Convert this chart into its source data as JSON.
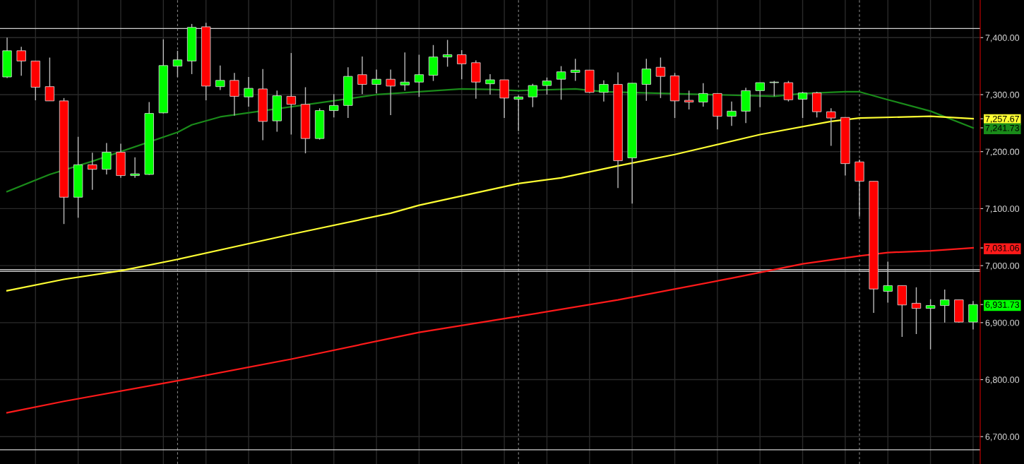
{
  "chart_data": {
    "type": "candlestick",
    "categories": [
      null,
      null,
      null,
      null,
      null,
      null,
      null,
      null,
      null,
      null,
      null,
      null,
      null,
      null,
      null,
      null,
      null,
      null,
      null,
      null,
      null,
      null,
      null,
      null,
      null,
      null,
      null,
      null,
      null,
      null,
      null,
      null,
      null,
      null,
      null,
      null,
      null,
      null,
      null,
      null,
      null,
      null,
      null,
      null,
      null,
      null,
      null,
      null,
      null,
      null,
      null,
      null,
      null,
      null,
      null,
      null,
      null,
      null,
      null,
      null,
      null,
      null,
      null,
      null,
      null,
      null,
      null,
      null,
      null
    ],
    "ohlc": [
      [
        7331,
        7400,
        7329,
        7377
      ],
      [
        7377,
        7384,
        7333,
        7359
      ],
      [
        7359,
        7359,
        7290,
        7313
      ],
      [
        7314,
        7365,
        7289,
        7289
      ],
      [
        7289,
        7294,
        7073,
        7120
      ],
      [
        7120,
        7226,
        7084,
        7177
      ],
      [
        7177,
        7198,
        7133,
        7169
      ],
      [
        7169,
        7215,
        7160,
        7199
      ],
      [
        7199,
        7214,
        7154,
        7158
      ],
      [
        7158,
        7190,
        7154,
        7161
      ],
      [
        7160,
        7287,
        7159,
        7267
      ],
      [
        7268,
        7397,
        7267,
        7351
      ],
      [
        7350,
        7377,
        7331,
        7361
      ],
      [
        7359,
        7424,
        7336,
        7418
      ],
      [
        7419,
        7426,
        7290,
        7315
      ],
      [
        7314,
        7351,
        7308,
        7325
      ],
      [
        7325,
        7338,
        7263,
        7297
      ],
      [
        7296,
        7331,
        7279,
        7311
      ],
      [
        7310,
        7345,
        7220,
        7253
      ],
      [
        7254,
        7307,
        7235,
        7298
      ],
      [
        7297,
        7373,
        7230,
        7283
      ],
      [
        7283,
        7313,
        7197,
        7223
      ],
      [
        7223,
        7276,
        7221,
        7272
      ],
      [
        7272,
        7301,
        7260,
        7281
      ],
      [
        7281,
        7348,
        7259,
        7332
      ],
      [
        7335,
        7367,
        7301,
        7318
      ],
      [
        7318,
        7344,
        7302,
        7327
      ],
      [
        7327,
        7344,
        7264,
        7315
      ],
      [
        7317,
        7374,
        7307,
        7322
      ],
      [
        7322,
        7370,
        7296,
        7335
      ],
      [
        7334,
        7387,
        7324,
        7366
      ],
      [
        7366,
        7396,
        7349,
        7370
      ],
      [
        7370,
        7378,
        7327,
        7354
      ],
      [
        7356,
        7360,
        7293,
        7322
      ],
      [
        7319,
        7336,
        7300,
        7326
      ],
      [
        7326,
        7326,
        7259,
        7294
      ],
      [
        7292,
        7298,
        7236,
        7296
      ],
      [
        7296,
        7319,
        7278,
        7316
      ],
      [
        7316,
        7330,
        7300,
        7324
      ],
      [
        7327,
        7350,
        7291,
        7340
      ],
      [
        7339,
        7363,
        7324,
        7343
      ],
      [
        7343,
        7343,
        7303,
        7304
      ],
      [
        7304,
        7325,
        7288,
        7318
      ],
      [
        7318,
        7339,
        7136,
        7184
      ],
      [
        7189,
        7320,
        7109,
        7320
      ],
      [
        7318,
        7363,
        7289,
        7345
      ],
      [
        7348,
        7365,
        7294,
        7332
      ],
      [
        7333,
        7338,
        7259,
        7289
      ],
      [
        7290,
        7307,
        7274,
        7287
      ],
      [
        7287,
        7320,
        7279,
        7302
      ],
      [
        7302,
        7302,
        7239,
        7262
      ],
      [
        7262,
        7288,
        7245,
        7271
      ],
      [
        7271,
        7312,
        7250,
        7307
      ],
      [
        7307,
        7321,
        7278,
        7321
      ],
      [
        7321,
        7324,
        7297,
        7322
      ],
      [
        7321,
        7324,
        7288,
        7291
      ],
      [
        7292,
        7305,
        7259,
        7303
      ],
      [
        7303,
        7305,
        7260,
        7270
      ],
      [
        7270,
        7276,
        7210,
        7259
      ],
      [
        7260,
        7260,
        7158,
        7179
      ],
      [
        7182,
        7186,
        7086,
        7148
      ],
      [
        7148,
        7148,
        6917,
        6959
      ],
      [
        6955,
        7007,
        6935,
        6965
      ],
      [
        6965,
        6965,
        6875,
        6931
      ],
      [
        6934,
        6962,
        6880,
        6925
      ],
      [
        6925,
        6941,
        6853,
        6930
      ],
      [
        6930,
        6958,
        6900,
        6940
      ],
      [
        6940,
        6940,
        6900,
        6901
      ],
      [
        6901,
        6938,
        6888,
        6931.73
      ]
    ],
    "series": [
      {
        "type": "line",
        "color": "#1a8c1a",
        "values": [
          7130,
          null,
          null,
          7160,
          null,
          null,
          7183,
          null,
          null,
          null,
          null,
          null,
          7234,
          7247,
          null,
          7261,
          null,
          null,
          null,
          null,
          null,
          null,
          null,
          null,
          null,
          null,
          7300,
          null,
          null,
          7305,
          null,
          null,
          7310,
          null,
          7309,
          null,
          7307,
          null,
          null,
          null,
          7310,
          null,
          7305,
          null,
          null,
          null,
          null,
          null,
          null,
          null,
          null,
          null,
          null,
          null,
          7297,
          null,
          7302,
          null,
          null,
          7305,
          7305,
          null,
          7291,
          null,
          null,
          7271,
          null,
          null,
          7241.73
        ]
      },
      {
        "type": "line",
        "color": "#ffff33",
        "values": [
          6956,
          null,
          null,
          null,
          6976,
          null,
          null,
          null,
          6991,
          null,
          null,
          null,
          7011,
          null,
          null,
          null,
          null,
          null,
          null,
          null,
          7055,
          null,
          null,
          null,
          null,
          null,
          null,
          7092,
          null,
          7106,
          null,
          null,
          null,
          null,
          null,
          null,
          7144,
          null,
          null,
          7154,
          null,
          null,
          null,
          7175,
          null,
          null,
          null,
          7195,
          null,
          null,
          null,
          null,
          null,
          7230,
          null,
          null,
          null,
          null,
          7253,
          null,
          7259,
          null,
          null,
          null,
          null,
          7262,
          null,
          null,
          7257.67
        ]
      },
      {
        "type": "line",
        "color": "#ff1a1a",
        "values": [
          6742,
          null,
          null,
          null,
          6762,
          null,
          null,
          null,
          null,
          null,
          null,
          null,
          6798,
          null,
          null,
          null,
          null,
          null,
          null,
          null,
          6836,
          null,
          null,
          null,
          null,
          null,
          null,
          null,
          null,
          6883,
          null,
          null,
          null,
          null,
          null,
          null,
          6911,
          null,
          null,
          null,
          null,
          null,
          null,
          6940,
          null,
          null,
          null,
          null,
          null,
          null,
          null,
          6978,
          null,
          null,
          null,
          null,
          7003,
          null,
          null,
          null,
          7017,
          null,
          7023,
          null,
          null,
          7026,
          null,
          null,
          7031.06
        ]
      }
    ],
    "ylim": [
      6652,
      7466
    ],
    "yticks": [
      {
        "value": 6700,
        "label": "6,700.00"
      },
      {
        "value": 6800,
        "label": "6,800.00"
      },
      {
        "value": 6900,
        "label": "6,900.00"
      },
      {
        "value": 7000,
        "label": "7,000.00"
      },
      {
        "value": 7100,
        "label": "7,100.00"
      },
      {
        "value": 7200,
        "label": "7,200.00"
      },
      {
        "value": 7300,
        "label": "7,300.00"
      },
      {
        "value": 7400,
        "label": "7,400.00"
      },
      {
        "value": 7257.67,
        "label": "7,257.67"
      },
      {
        "value": 7241.73,
        "label": "7,241.73"
      },
      {
        "value": 7031.06,
        "label": "7,031.06"
      },
      {
        "value": 6931.73,
        "label": "6,931.73"
      }
    ],
    "tick_labels": "y",
    "grid": true,
    "ref_lines": [
      {
        "axis": "y",
        "value": 7416,
        "color": "#d0d0d0"
      },
      {
        "axis": "y",
        "value": 6993,
        "color": "#c0c0c0"
      },
      {
        "axis": "y",
        "value": 6990,
        "color": "#c0c0c0"
      },
      {
        "axis": "y",
        "value": 6677,
        "color": "#d0d0d0"
      }
    ]
  }
}
